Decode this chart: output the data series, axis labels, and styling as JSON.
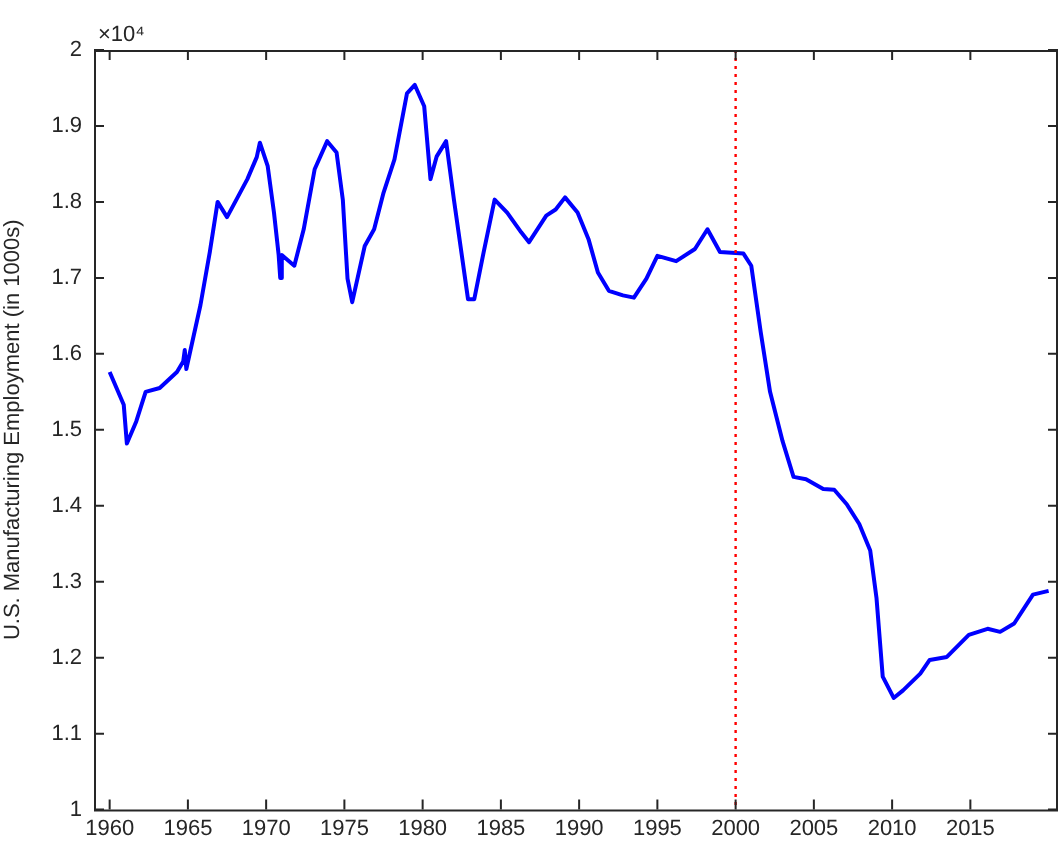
{
  "chart_data": {
    "type": "line",
    "ylabel": "U.S. Manufacturing Employment (in 1000s)",
    "annotations": [
      "×10⁴"
    ],
    "x": [
      1960.0,
      1960.9,
      1961.1,
      1961.7,
      1962.3,
      1963.2,
      1964.3,
      1964.7,
      1964.8,
      1964.9,
      1965.8,
      1966.4,
      1966.9,
      1967.5,
      1968.1,
      1968.8,
      1969.4,
      1969.6,
      1970.1,
      1970.5,
      1970.8,
      1970.9,
      1971.0,
      1971.8,
      1972.4,
      1973.1,
      1973.9,
      1974.5,
      1974.9,
      1975.2,
      1975.5,
      1976.3,
      1976.9,
      1977.5,
      1978.2,
      1979.0,
      1979.5,
      1980.1,
      1980.5,
      1980.9,
      1981.5,
      1982.0,
      1982.9,
      1983.3,
      1983.9,
      1984.6,
      1985.4,
      1986.3,
      1986.8,
      1987.9,
      1988.5,
      1989.1,
      1989.9,
      1990.6,
      1991.2,
      1991.9,
      1992.8,
      1993.5,
      1994.3,
      1995.0,
      1996.2,
      1997.4,
      1998.2,
      1999.0,
      2000.5,
      2001.0,
      2001.6,
      2002.2,
      2003.0,
      2003.7,
      2004.5,
      2005.6,
      2006.3,
      2007.1,
      2007.9,
      2008.6,
      2009.0,
      2009.4,
      2010.1,
      2010.7,
      2011.8,
      2012.4,
      2013.5,
      2014.9,
      2016.1,
      2016.9,
      2017.8,
      2019.0,
      2020.0
    ],
    "series": [
      {
        "color": "#0000ff",
        "values": [
          1.576,
          1.533,
          1.482,
          1.511,
          1.55,
          1.555,
          1.576,
          1.59,
          1.605,
          1.58,
          1.664,
          1.734,
          1.8,
          1.78,
          1.803,
          1.83,
          1.859,
          1.878,
          1.847,
          1.786,
          1.73,
          1.7,
          1.73,
          1.716,
          1.764,
          1.843,
          1.88,
          1.865,
          1.803,
          1.699,
          1.668,
          1.742,
          1.764,
          1.812,
          1.856,
          1.943,
          1.954,
          1.926,
          1.83,
          1.86,
          1.88,
          1.803,
          1.672,
          1.672,
          1.734,
          1.803,
          1.786,
          1.76,
          1.747,
          1.782,
          1.79,
          1.806,
          1.786,
          1.751,
          1.707,
          1.683,
          1.677,
          1.674,
          1.699,
          1.729,
          1.722,
          1.738,
          1.764,
          1.734,
          1.732,
          1.716,
          1.629,
          1.55,
          1.485,
          1.438,
          1.435,
          1.422,
          1.421,
          1.402,
          1.376,
          1.341,
          1.279,
          1.175,
          1.147,
          1.157,
          1.179,
          1.197,
          1.201,
          1.23,
          1.238,
          1.234,
          1.245,
          1.283,
          1.288
        ]
      }
    ],
    "xlim": [
      1959,
      2020.6
    ],
    "xticks": [
      1960,
      1965,
      1970,
      1975,
      1980,
      1985,
      1990,
      1995,
      2000,
      2005,
      2010,
      2015
    ],
    "ylim": [
      1,
      2
    ],
    "yticks": [
      1,
      1.1,
      1.2,
      1.3,
      1.4,
      1.5,
      1.6,
      1.7,
      1.8,
      1.9,
      2
    ],
    "ref_lines": [
      {
        "axis": "x",
        "value": 2000,
        "color": "#ff0000",
        "line_style": "dotted"
      }
    ],
    "grid": false,
    "legend": false
  }
}
